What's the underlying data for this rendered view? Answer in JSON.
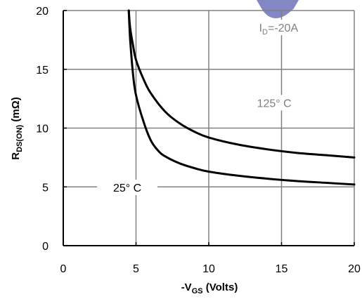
{
  "chart_data": {
    "type": "line",
    "xlabel": {
      "prefix": "-V",
      "sub": "GS",
      "suffix": " (Volts)"
    },
    "ylabel": {
      "prefix": "R",
      "sub": "DS(ON)",
      "suffix": " (mΩ)"
    },
    "xlim": [
      0,
      20
    ],
    "ylim": [
      0,
      20
    ],
    "x_ticks": [
      0,
      5,
      10,
      15,
      20
    ],
    "y_ticks": [
      0,
      5,
      10,
      15,
      20
    ],
    "grid": true,
    "colors": {
      "line": "#000000",
      "grid": "#808080",
      "annotation": "#7f7f7f",
      "logo": "#5a5fb0"
    },
    "series": [
      {
        "name": "125° C",
        "points": [
          [
            4.5,
            20
          ],
          [
            4.6,
            18.5
          ],
          [
            4.8,
            17
          ],
          [
            5.0,
            15.8
          ],
          [
            5.5,
            14.2
          ],
          [
            6.0,
            13.0
          ],
          [
            7.0,
            11.4
          ],
          [
            8.0,
            10.4
          ],
          [
            9.0,
            9.7
          ],
          [
            10.0,
            9.2
          ],
          [
            12.0,
            8.6
          ],
          [
            14.0,
            8.2
          ],
          [
            16.0,
            7.9
          ],
          [
            18.0,
            7.7
          ],
          [
            20.0,
            7.5
          ]
        ]
      },
      {
        "name": "25° C",
        "points": [
          [
            4.5,
            20
          ],
          [
            4.6,
            17.5
          ],
          [
            4.8,
            14.5
          ],
          [
            5.0,
            12.8
          ],
          [
            5.5,
            10.6
          ],
          [
            6.0,
            9.0
          ],
          [
            6.5,
            8.1
          ],
          [
            7.0,
            7.6
          ],
          [
            8.0,
            7.0
          ],
          [
            9.0,
            6.6
          ],
          [
            10.0,
            6.3
          ],
          [
            12.0,
            5.95
          ],
          [
            14.0,
            5.7
          ],
          [
            16.0,
            5.5
          ],
          [
            18.0,
            5.35
          ],
          [
            20.0,
            5.2
          ]
        ]
      }
    ],
    "annotations": [
      {
        "id": "id",
        "prefix": "I",
        "sub": "D",
        "suffix": "=-20A",
        "x": 14.8,
        "y": 18.2,
        "color": "#7f7f7f"
      },
      {
        "id": "t125",
        "text": "125° C",
        "x": 14.5,
        "y": 11.8,
        "color": "#7f7f7f"
      },
      {
        "id": "t25",
        "text": "25° C",
        "x": 4.4,
        "y": 4.6,
        "color": "#000000"
      }
    ]
  }
}
